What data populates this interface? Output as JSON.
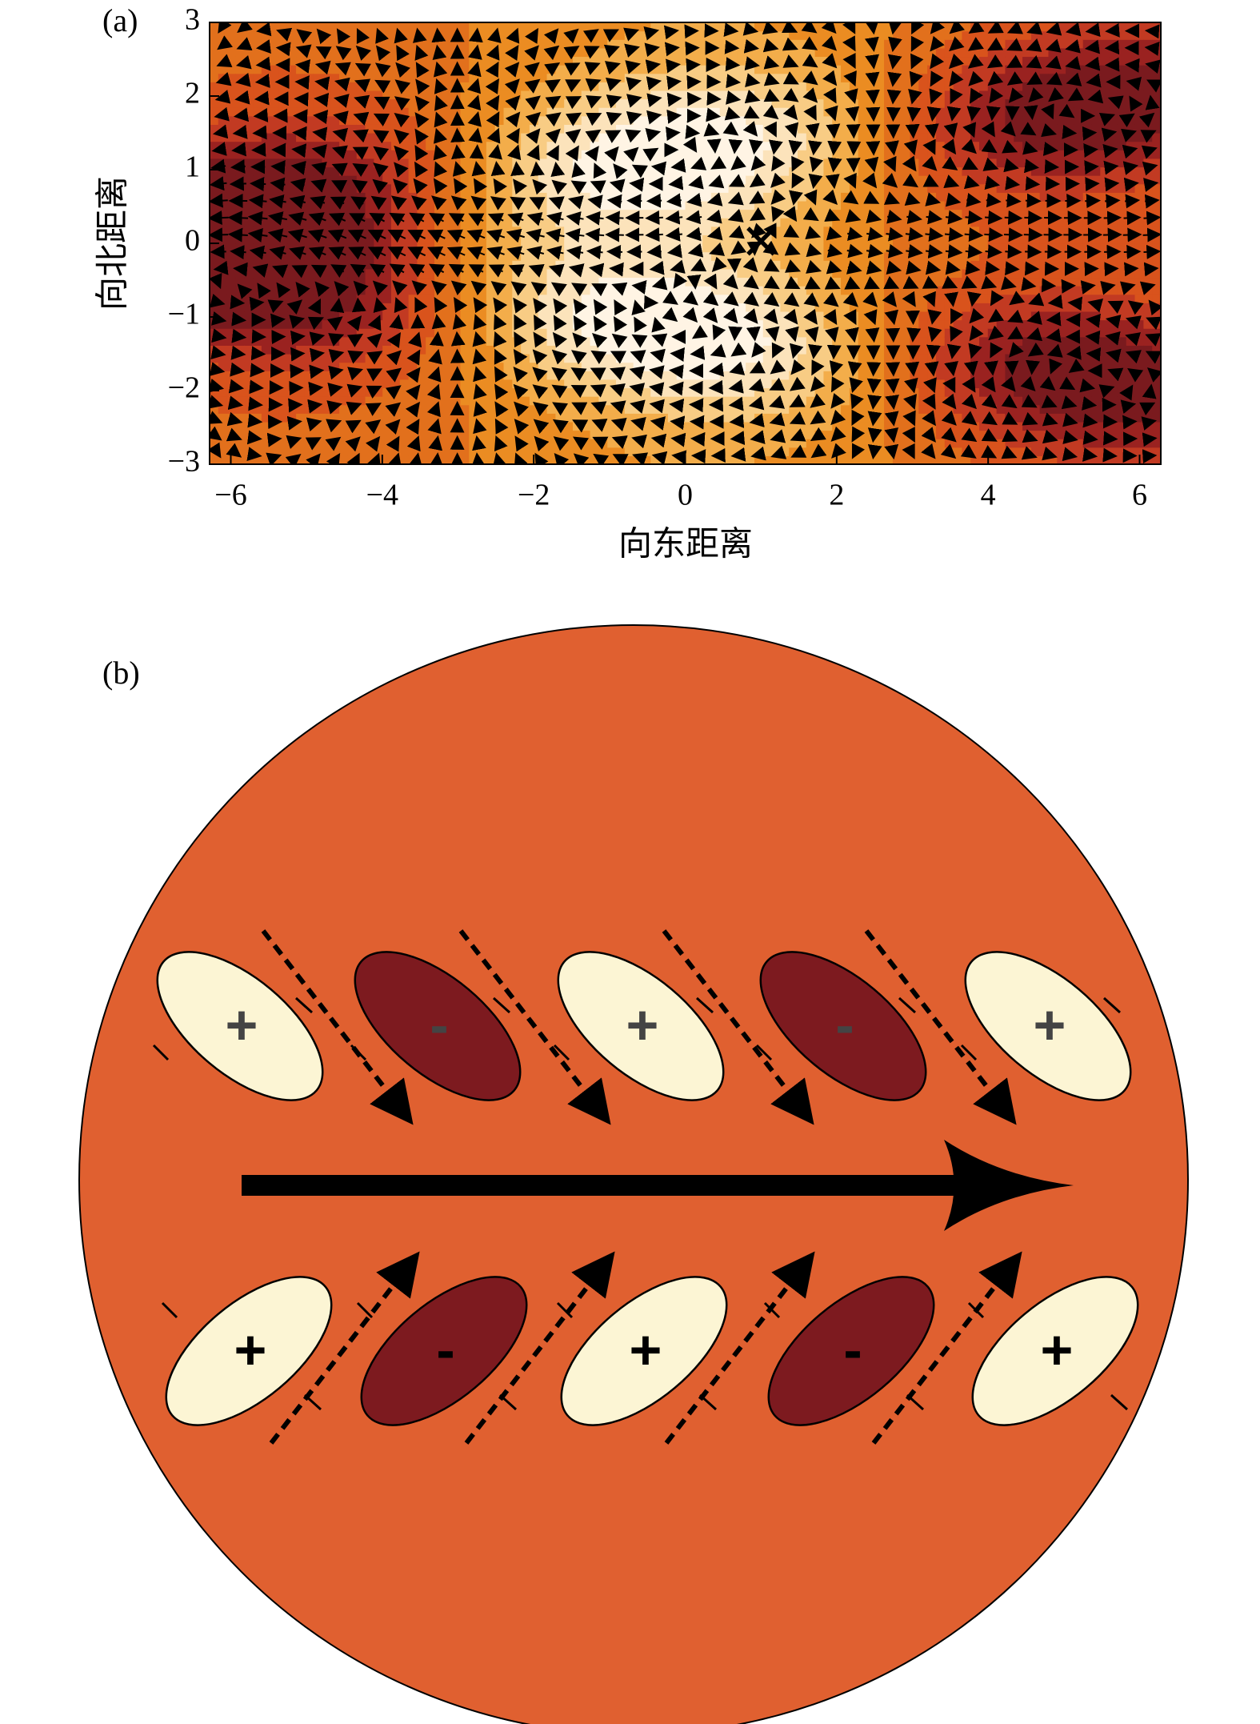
{
  "chart_data": {
    "type": "quiver",
    "panel_label": "(a)",
    "xlabel": "向东距离",
    "ylabel": "向北距离",
    "xlim": [
      -6.28,
      6.28
    ],
    "ylim": [
      -3,
      3
    ],
    "xticks": [
      {
        "value": -6,
        "label": "−6"
      },
      {
        "value": -4,
        "label": "−4"
      },
      {
        "value": -2,
        "label": "−2"
      },
      0,
      2,
      4,
      6
    ],
    "yticks": [
      {
        "value": -3,
        "label": "−3"
      },
      {
        "value": -2,
        "label": "−2"
      },
      {
        "value": -1,
        "label": "−1"
      },
      0,
      1,
      2,
      3
    ],
    "marker": {
      "x": 1,
      "y": 0,
      "label": "×"
    }
  },
  "diagram": {
    "panel_label": "(b)",
    "top_row": [
      "+",
      "-",
      "+",
      "-",
      "+"
    ],
    "bottom_row": [
      "+",
      "-",
      "+",
      "-",
      "+"
    ]
  }
}
